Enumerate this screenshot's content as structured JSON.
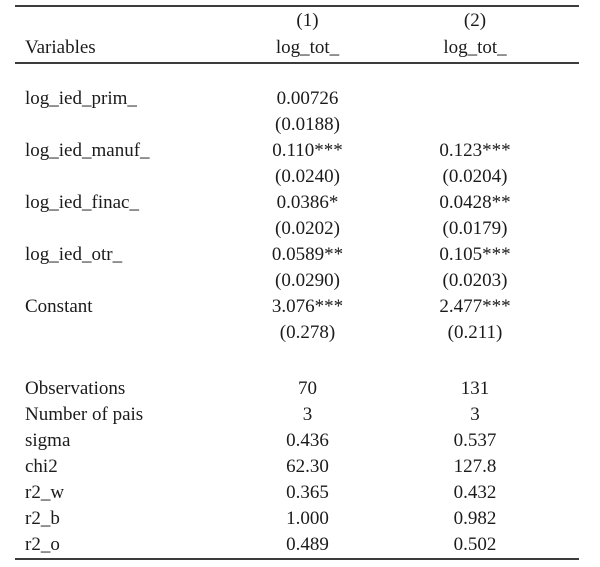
{
  "colors": {
    "background": "#ffffff",
    "text": "#1b1b1b",
    "rule": "#3c3c3c"
  },
  "table": {
    "header": {
      "model_numbers": [
        "(1)",
        "(2)"
      ],
      "variables_label": "Variables",
      "dep_vars": [
        "log_tot_",
        "log_tot_"
      ]
    },
    "coefficients": [
      {
        "variable": "log_ied_prim_",
        "col1": "0.00726",
        "col1_se": "(0.0188)",
        "col2": "",
        "col2_se": ""
      },
      {
        "variable": "log_ied_manuf_",
        "col1": "0.110***",
        "col1_se": "(0.0240)",
        "col2": "0.123***",
        "col2_se": "(0.0204)"
      },
      {
        "variable": "log_ied_finac_",
        "col1": "0.0386*",
        "col1_se": "(0.0202)",
        "col2": "0.0428**",
        "col2_se": "(0.0179)"
      },
      {
        "variable": "log_ied_otr_",
        "col1": "0.0589**",
        "col1_se": "(0.0290)",
        "col2": "0.105***",
        "col2_se": "(0.0203)"
      },
      {
        "variable": "Constant",
        "col1": "3.076***",
        "col1_se": "(0.278)",
        "col2": "2.477***",
        "col2_se": "(0.211)"
      }
    ],
    "statistics": [
      {
        "label": "Observations",
        "col1": "70",
        "col2": "131"
      },
      {
        "label": "Number of pais",
        "col1": "3",
        "col2": "3"
      },
      {
        "label": "sigma",
        "col1": "0.436",
        "col2": "0.537"
      },
      {
        "label": "chi2",
        "col1": "62.30",
        "col2": "127.8"
      },
      {
        "label": "r2_w",
        "col1": "0.365",
        "col2": "0.432"
      },
      {
        "label": "r2_b",
        "col1": "1.000",
        "col2": "0.982"
      },
      {
        "label": "r2_o",
        "col1": "0.489",
        "col2": "0.502"
      }
    ]
  }
}
